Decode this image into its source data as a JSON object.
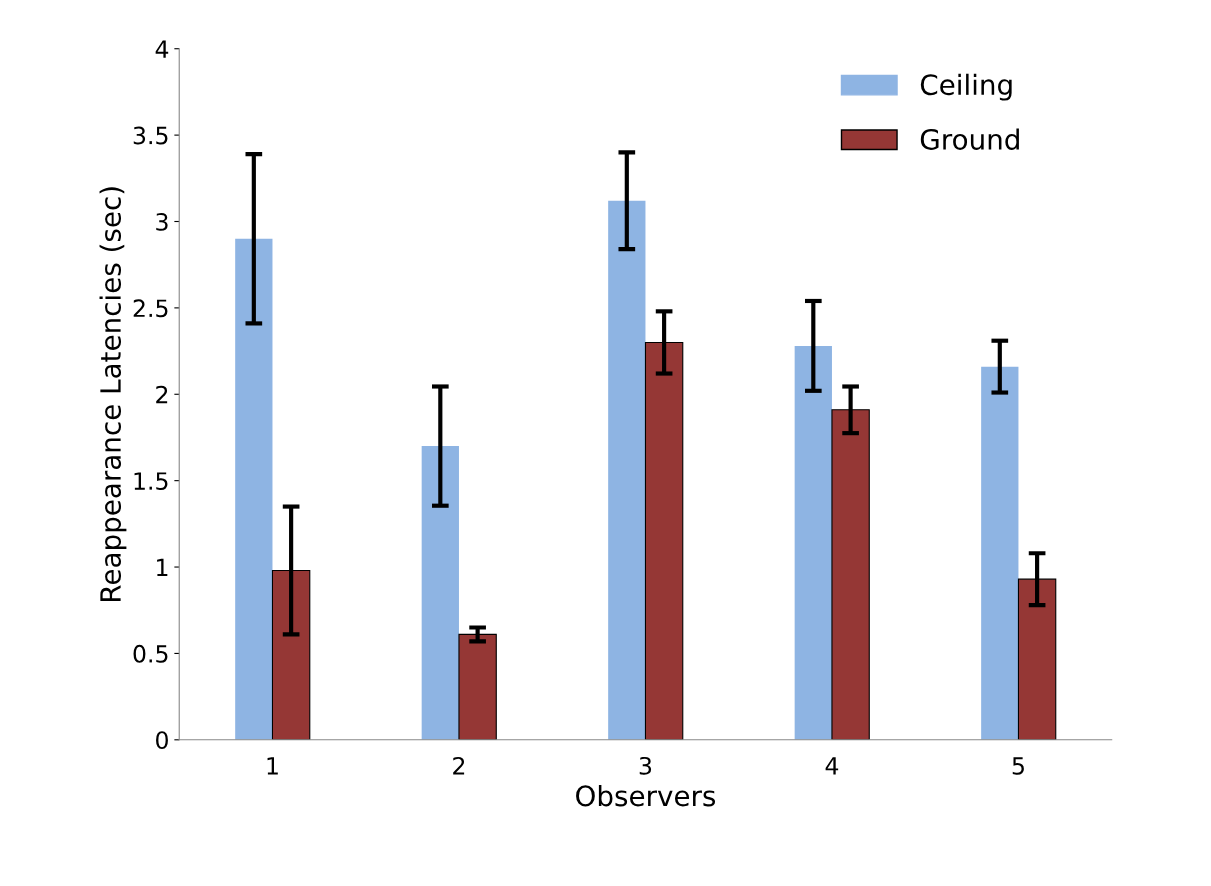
{
  "chart_data": {
    "type": "bar",
    "xlabel": "Observers",
    "ylabel": "Reappearance Latencies (sec)",
    "categories": [
      "1",
      "2",
      "3",
      "4",
      "5"
    ],
    "series": [
      {
        "name": "Ceiling",
        "color": "#8eb4e3",
        "values": [
          2.9,
          1.7,
          3.12,
          2.28,
          2.16
        ],
        "errors": [
          0.49,
          0.345,
          0.28,
          0.26,
          0.15
        ]
      },
      {
        "name": "Ground",
        "color": "#953735",
        "values": [
          0.98,
          0.61,
          2.3,
          1.91,
          0.93
        ],
        "errors": [
          0.37,
          0.04,
          0.18,
          0.135,
          0.15
        ]
      }
    ],
    "ylim": [
      0,
      4
    ],
    "yticks": [
      0,
      0.5,
      1,
      1.5,
      2,
      2.5,
      3,
      3.5,
      4
    ],
    "grid": false,
    "legend": "top right"
  }
}
